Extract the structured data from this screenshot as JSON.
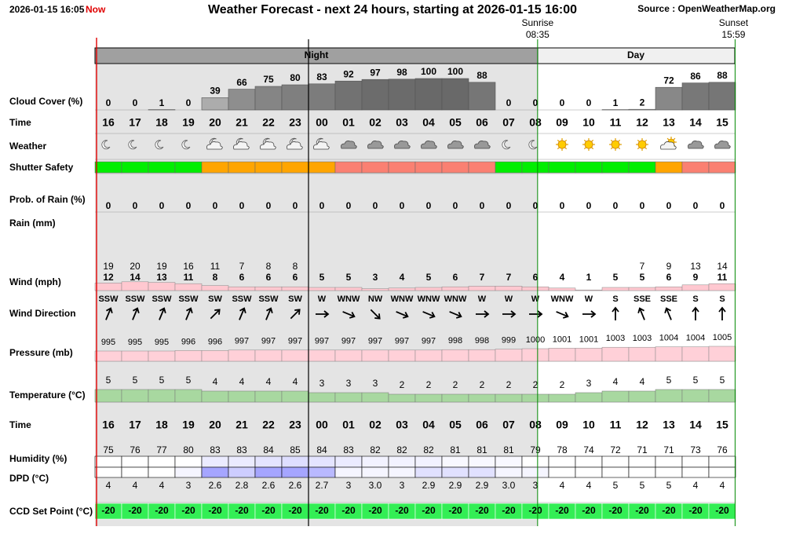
{
  "header": {
    "timestamp": "2026-01-15 16:05",
    "now": "Now",
    "title": "Weather Forecast - next 24 hours, starting at 2026-01-15 16:00",
    "source": "Source : OpenWeatherMap.org"
  },
  "sun": {
    "sunrise_label": "Sunrise",
    "sunrise": "08:35",
    "sunset_label": "Sunset",
    "sunset": "15:59"
  },
  "periods": [
    {
      "label": "Night"
    },
    {
      "label": "Day"
    }
  ],
  "hours": [
    "16",
    "17",
    "18",
    "19",
    "20",
    "21",
    "22",
    "23",
    "00",
    "01",
    "02",
    "03",
    "04",
    "05",
    "06",
    "07",
    "08",
    "09",
    "10",
    "11",
    "12",
    "13",
    "14",
    "15"
  ],
  "rows": {
    "cloud_cover": {
      "label": "Cloud Cover (%)",
      "values": [
        0,
        0,
        1,
        0,
        39,
        66,
        75,
        80,
        83,
        92,
        97,
        98,
        100,
        100,
        88,
        0,
        0,
        0,
        0,
        1,
        2,
        72,
        86,
        88
      ]
    },
    "time": {
      "label": "Time"
    },
    "weather": {
      "label": "Weather"
    },
    "shutter_safety": {
      "label": "Shutter Safety",
      "colors": [
        "#00ee00",
        "#00ee00",
        "#00ee00",
        "#00ee00",
        "#ffa500",
        "#ffa500",
        "#ffa500",
        "#ffa500",
        "#ffa500",
        "#fa8072",
        "#fa8072",
        "#fa8072",
        "#fa8072",
        "#fa8072",
        "#fa8072",
        "#00ee00",
        "#00ee00",
        "#00ee00",
        "#00ee00",
        "#00ee00",
        "#00ee00",
        "#ffa500",
        "#fa8072",
        "#fa8072"
      ]
    },
    "prob_rain": {
      "label": "Prob. of Rain (%)",
      "values": [
        0,
        0,
        0,
        0,
        0,
        0,
        0,
        0,
        0,
        0,
        0,
        0,
        0,
        0,
        0,
        0,
        0,
        0,
        0,
        0,
        0,
        0,
        0,
        0
      ]
    },
    "rain": {
      "label": "Rain (mm)"
    },
    "wind": {
      "label": "Wind (mph)",
      "speed": [
        12,
        14,
        13,
        11,
        8,
        6,
        6,
        6,
        5,
        5,
        3,
        4,
        5,
        6,
        7,
        7,
        6,
        4,
        1,
        5,
        5,
        6,
        9,
        11
      ],
      "gust": [
        19,
        20,
        19,
        16,
        11,
        7,
        8,
        8,
        null,
        null,
        null,
        null,
        null,
        null,
        null,
        null,
        null,
        null,
        null,
        null,
        7,
        9,
        13,
        14
      ]
    },
    "wind_direction": {
      "label": "Wind Direction",
      "values": [
        "SSW",
        "SSW",
        "SSW",
        "SSW",
        "SW",
        "SSW",
        "SSW",
        "SW",
        "W",
        "WNW",
        "NW",
        "WNW",
        "WNW",
        "WNW",
        "W",
        "W",
        "W",
        "WNW",
        "W",
        "S",
        "SSE",
        "SSE",
        "S",
        "S"
      ]
    },
    "pressure": {
      "label": "Pressure (mb)",
      "values": [
        995,
        995,
        995,
        996,
        996,
        997,
        997,
        997,
        997,
        997,
        997,
        997,
        997,
        998,
        998,
        999,
        1000,
        1001,
        1001,
        1003,
        1003,
        1004,
        1004,
        1005
      ]
    },
    "temperature": {
      "label": "Temperature (°C)",
      "values": [
        5,
        5,
        5,
        5,
        4,
        4,
        4,
        4,
        3,
        3,
        3,
        2,
        2,
        2,
        2,
        2,
        2,
        2,
        3,
        4,
        4,
        5,
        5,
        5
      ]
    },
    "time2": {
      "label": "Time"
    },
    "humidity": {
      "label": "Humidity (%)",
      "values": [
        75,
        76,
        77,
        80,
        83,
        83,
        84,
        85,
        84,
        83,
        82,
        82,
        82,
        81,
        81,
        81,
        79,
        78,
        74,
        72,
        71,
        71,
        73,
        76
      ]
    },
    "dpd": {
      "label": "DPD (°C)",
      "values": [
        4,
        4,
        4,
        3,
        2.6,
        2.8,
        2.6,
        2.6,
        2.7,
        3,
        3,
        3,
        2.9,
        2.9,
        2.9,
        3,
        3,
        4,
        4,
        5,
        5,
        5,
        4,
        4
      ],
      "value_labels": [
        "4",
        "4",
        "4",
        "3",
        "2.6",
        "2.8",
        "2.6",
        "2.6",
        "2.7",
        "3",
        "3.0",
        "3",
        "2.9",
        "2.9",
        "2.9",
        "3.0",
        "3",
        "4",
        "4",
        "5",
        "5",
        "5",
        "4",
        "4"
      ]
    },
    "ccd_set_point": {
      "label": "CCD Set Point (°C)",
      "values": [
        -20,
        -20,
        -20,
        -20,
        -20,
        -20,
        -20,
        -20,
        -20,
        -20,
        -20,
        -20,
        -20,
        -20,
        -20,
        -20,
        -20,
        -20,
        -20,
        -20,
        -20,
        -20,
        -20,
        -20
      ]
    }
  }
}
